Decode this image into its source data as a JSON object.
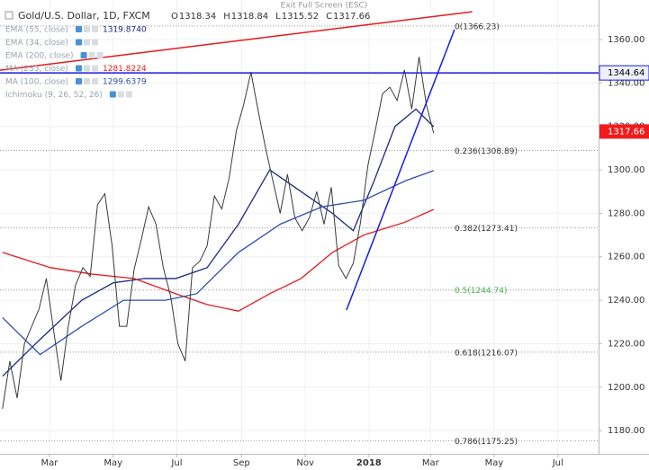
{
  "chart_data": {
    "type": "line",
    "title": "Gold/U.S. Dollar, 1D, FXCM",
    "banner": "Exit Full Screen (ESC)",
    "ohlc": [
      {
        "label": "O",
        "value": 1318.34
      },
      {
        "label": "H",
        "value": 1318.84
      },
      {
        "label": "L",
        "value": 1315.52
      },
      {
        "label": "C",
        "value": 1317.66
      }
    ],
    "xlim": [
      11.6,
      585
    ],
    "ylim": [
      1169.3,
      1378.2
    ],
    "xticks": [
      {
        "value": 59,
        "label": "Mar"
      },
      {
        "value": 120,
        "label": "May"
      },
      {
        "value": 181,
        "label": "Jul"
      },
      {
        "value": 243,
        "label": "Sep"
      },
      {
        "value": 304,
        "label": "Nov"
      },
      {
        "value": 365,
        "label": "2018"
      },
      {
        "value": 424,
        "label": "Mar"
      },
      {
        "value": 485,
        "label": "May"
      },
      {
        "value": 546,
        "label": "Jul"
      }
    ],
    "yticks": [
      {
        "value": 1180,
        "label": "1180.00"
      },
      {
        "value": 1200,
        "label": "1200.00"
      },
      {
        "value": 1220,
        "label": "1220.00"
      },
      {
        "value": 1240,
        "label": "1240.00"
      },
      {
        "value": 1260,
        "label": "1260.00"
      },
      {
        "value": 1280,
        "label": "1280.00"
      },
      {
        "value": 1300,
        "label": "1300.00"
      },
      {
        "value": 1320,
        "label": "1320.00"
      },
      {
        "value": 1340,
        "label": "1340.00"
      },
      {
        "value": 1360,
        "label": "1360.00"
      }
    ],
    "price": {
      "color": "#3a3a3a",
      "x": [
        14,
        21,
        28,
        35,
        42,
        49,
        56,
        63,
        70,
        77,
        84,
        91,
        98,
        105,
        112,
        119,
        126,
        133,
        140,
        147,
        154,
        161,
        168,
        175,
        182,
        189,
        196,
        203,
        210,
        217,
        224,
        231,
        238,
        245,
        252,
        259,
        266,
        273,
        280,
        287,
        294,
        301,
        308,
        315,
        322,
        329,
        336,
        343,
        350,
        357,
        364,
        371,
        378,
        385,
        392,
        399,
        406,
        413,
        420,
        427
      ],
      "values": [
        1190,
        1212,
        1195,
        1220,
        1228,
        1236,
        1250,
        1226,
        1203,
        1228,
        1247,
        1255,
        1251,
        1284,
        1289,
        1265,
        1228,
        1228,
        1254,
        1268,
        1283,
        1275,
        1255,
        1242,
        1220,
        1212,
        1255,
        1258,
        1265,
        1288,
        1282,
        1296,
        1318,
        1330,
        1345,
        1327,
        1310,
        1295,
        1280,
        1298,
        1278,
        1272,
        1278,
        1290,
        1275,
        1292,
        1256,
        1250,
        1257,
        1276,
        1302,
        1318,
        1335,
        1338,
        1332,
        1346,
        1328,
        1352,
        1330,
        1317
      ]
    },
    "indicators": [
      {
        "name": "EMA (55, close)",
        "value": 1319.874,
        "value_label": "1319.8740",
        "color": "#1c2a80",
        "x": [
          14,
          50,
          90,
          120,
          150,
          180,
          210,
          240,
          270,
          300,
          330,
          350,
          370,
          390,
          410,
          427
        ],
        "values": [
          1205,
          1222,
          1240,
          1248,
          1250,
          1250,
          1255,
          1275,
          1300,
          1290,
          1280,
          1272,
          1295,
          1320,
          1328,
          1319.874
        ]
      },
      {
        "name": "EMA (34, close)"
      },
      {
        "name": "EMA (200, close)"
      },
      {
        "name": "MA (233, close)",
        "value": 1281.8224,
        "color": "#e31a1c",
        "x": [
          14,
          60,
          100,
          140,
          180,
          210,
          240,
          270,
          300,
          330,
          360,
          400,
          427
        ],
        "values": [
          1262,
          1255,
          1252,
          1250,
          1243,
          1238,
          1235,
          1243,
          1250,
          1262,
          1270,
          1276,
          1281.8224
        ]
      },
      {
        "name": "MA (100, close)",
        "value": 1299.6379,
        "color": "#2f4fb0",
        "x": [
          14,
          50,
          90,
          130,
          170,
          200,
          240,
          280,
          320,
          360,
          400,
          427
        ],
        "values": [
          1232,
          1215,
          1228,
          1240,
          1240,
          1243,
          1262,
          1275,
          1283,
          1286,
          1295,
          1299.6379
        ]
      },
      {
        "name": "Ichimoku (9, 26, 52, 26)"
      }
    ],
    "hline": {
      "value": 1344.64,
      "color": "#1a1ae6"
    },
    "trendlines": [
      {
        "color": "#e31a1c",
        "x": [
          11.6,
          464
        ],
        "values": [
          1345.9,
          1372.8
        ]
      },
      {
        "color": "#1a1ae6",
        "x": [
          343.5,
          447
        ],
        "values": [
          1235.5,
          1364.6
        ]
      }
    ],
    "fib": {
      "line_color": "#9a9a9a",
      "label_x": 447,
      "levels": [
        {
          "label": "0(1366.23)",
          "value": 1366.23,
          "color": "#333333"
        },
        {
          "label": "0.236(1308.89)",
          "value": 1308.89,
          "color": "#333333"
        },
        {
          "label": "0.382(1273.41)",
          "value": 1273.41,
          "color": "#333333"
        },
        {
          "label": "0.5(1244.74)",
          "value": 1244.74,
          "color": "#4caf50"
        },
        {
          "label": "0.618(1216.07)",
          "value": 1216.07,
          "color": "#333333"
        },
        {
          "label": "0.786(1175.25)",
          "value": 1175.25,
          "color": "#333333"
        }
      ]
    },
    "grid": true
  }
}
